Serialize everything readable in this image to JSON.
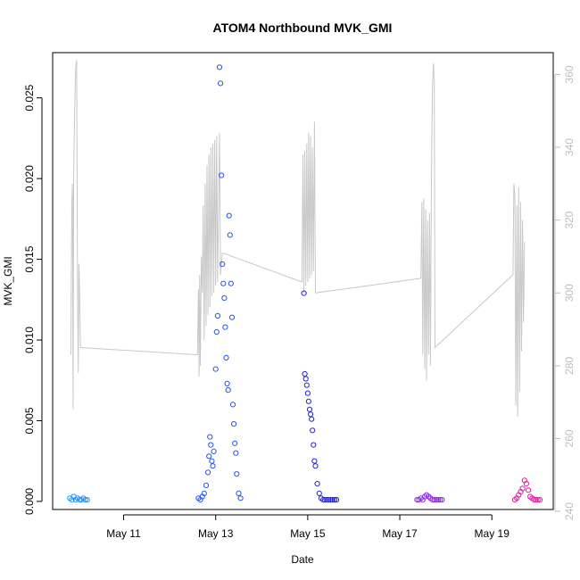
{
  "chart_data": {
    "type": "scatter",
    "title": "ATOM4 Northbound MVK_GMI",
    "xlabel": "Date",
    "ylabel": "MVK_GMI",
    "y2label": "",
    "x_axis": {
      "type": "date",
      "range": [
        "2016-05-09T11:00",
        "2016-05-20T08:00"
      ],
      "ticks": [
        "2016-05-11",
        "2016-05-13",
        "2016-05-15",
        "2016-05-17",
        "2016-05-19"
      ],
      "tick_labels": [
        "May 11",
        "May 13",
        "May 15",
        "May 17",
        "May 19"
      ]
    },
    "y_left": {
      "range": [
        -0.0005,
        0.0278
      ],
      "ticks": [
        0.0,
        0.005,
        0.01,
        0.015,
        0.02,
        0.025
      ],
      "tick_labels": [
        "0.000",
        "0.005",
        "0.010",
        "0.015",
        "0.020",
        "0.025"
      ]
    },
    "y_right": {
      "range": [
        240.5,
        366
      ],
      "ticks": [
        240,
        260,
        280,
        300,
        320,
        340,
        360
      ],
      "tick_labels": [
        "240",
        "260",
        "280",
        "300",
        "320",
        "340",
        "360"
      ],
      "color": "#bdbdbd"
    },
    "grid": false,
    "series": [
      {
        "color": "#1e90ff",
        "points": [
          [
            "2016-05-09T20:00",
            0.0002
          ],
          [
            "2016-05-09T21:00",
            0.0001
          ],
          [
            "2016-05-09T22:00",
            0.0003
          ],
          [
            "2016-05-09T23:00",
            0.0001
          ],
          [
            "2016-05-10T00:00",
            0.0002
          ],
          [
            "2016-05-10T01:00",
            0.0001
          ],
          [
            "2016-05-10T02:00",
            0.0001
          ],
          [
            "2016-05-10T03:00",
            0.0002
          ],
          [
            "2016-05-10T04:00",
            0.0001
          ],
          [
            "2016-05-10T05:00",
            0.0001
          ]
        ]
      },
      {
        "color": "#2a52f0",
        "points": [
          [
            "2016-05-12T15:00",
            0.0002
          ],
          [
            "2016-05-12T16:00",
            0.0001
          ],
          [
            "2016-05-12T17:00",
            0.0003
          ],
          [
            "2016-05-12T18:00",
            0.0005
          ],
          [
            "2016-05-12T19:00",
            0.001
          ],
          [
            "2016-05-12T20:00",
            0.0018
          ],
          [
            "2016-05-12T20:30",
            0.0028
          ],
          [
            "2016-05-12T21:00",
            0.004
          ],
          [
            "2016-05-12T21:30",
            0.0035
          ],
          [
            "2016-05-12T22:00",
            0.0025
          ],
          [
            "2016-05-12T22:30",
            0.0022
          ],
          [
            "2016-05-12T23:00",
            0.0031
          ],
          [
            "2016-05-13T00:00",
            0.0082
          ],
          [
            "2016-05-13T00:30",
            0.0105
          ],
          [
            "2016-05-13T01:00",
            0.0115
          ],
          [
            "2016-05-13T02:00",
            0.0269
          ],
          [
            "2016-05-13T02:30",
            0.0259
          ],
          [
            "2016-05-13T03:00",
            0.0202
          ],
          [
            "2016-05-13T03:30",
            0.0147
          ],
          [
            "2016-05-13T04:00",
            0.0135
          ],
          [
            "2016-05-13T04:30",
            0.0126
          ],
          [
            "2016-05-13T05:00",
            0.0108
          ],
          [
            "2016-05-13T05:30",
            0.0089
          ],
          [
            "2016-05-13T06:00",
            0.0073
          ],
          [
            "2016-05-13T06:30",
            0.0069
          ],
          [
            "2016-05-13T07:00",
            0.0177
          ],
          [
            "2016-05-13T07:30",
            0.0165
          ],
          [
            "2016-05-13T08:00",
            0.0135
          ],
          [
            "2016-05-13T08:30",
            0.0114
          ],
          [
            "2016-05-13T09:00",
            0.006
          ],
          [
            "2016-05-13T09:30",
            0.0048
          ],
          [
            "2016-05-13T10:00",
            0.0036
          ],
          [
            "2016-05-13T10:30",
            0.003
          ],
          [
            "2016-05-13T11:00",
            0.0017
          ],
          [
            "2016-05-13T12:00",
            0.0005
          ],
          [
            "2016-05-13T13:00",
            0.0002
          ]
        ]
      },
      {
        "color": "#2323d8",
        "points": [
          [
            "2016-05-14T22:00",
            0.0129
          ],
          [
            "2016-05-14T22:30",
            0.0079
          ],
          [
            "2016-05-14T23:00",
            0.0076
          ],
          [
            "2016-05-14T23:30",
            0.0072
          ],
          [
            "2016-05-15T00:00",
            0.0067
          ],
          [
            "2016-05-15T00:30",
            0.0062
          ],
          [
            "2016-05-15T01:00",
            0.0057
          ],
          [
            "2016-05-15T01:30",
            0.0054
          ],
          [
            "2016-05-15T02:00",
            0.0051
          ],
          [
            "2016-05-15T02:30",
            0.0044
          ],
          [
            "2016-05-15T03:00",
            0.0035
          ],
          [
            "2016-05-15T03:30",
            0.0025
          ],
          [
            "2016-05-15T04:00",
            0.0022
          ],
          [
            "2016-05-15T05:00",
            0.0011
          ],
          [
            "2016-05-15T06:00",
            0.0005
          ],
          [
            "2016-05-15T07:00",
            0.0002
          ],
          [
            "2016-05-15T08:00",
            0.0001
          ],
          [
            "2016-05-15T09:00",
            0.0001
          ],
          [
            "2016-05-15T10:00",
            0.0001
          ],
          [
            "2016-05-15T11:00",
            0.0001
          ],
          [
            "2016-05-15T12:00",
            0.0001
          ],
          [
            "2016-05-15T13:00",
            0.0001
          ],
          [
            "2016-05-15T14:00",
            0.0001
          ],
          [
            "2016-05-15T15:00",
            0.0001
          ]
        ]
      },
      {
        "color": "#8a2be2",
        "points": [
          [
            "2016-05-17T09:00",
            0.0001
          ],
          [
            "2016-05-17T10:00",
            0.0001
          ],
          [
            "2016-05-17T11:00",
            0.0002
          ],
          [
            "2016-05-17T12:00",
            0.0001
          ],
          [
            "2016-05-17T13:00",
            0.0003
          ],
          [
            "2016-05-17T14:00",
            0.0004
          ],
          [
            "2016-05-17T15:00",
            0.0003
          ],
          [
            "2016-05-17T16:00",
            0.0002
          ],
          [
            "2016-05-17T17:00",
            0.0001
          ],
          [
            "2016-05-17T18:00",
            0.0001
          ],
          [
            "2016-05-17T19:00",
            0.0001
          ],
          [
            "2016-05-17T20:00",
            0.0001
          ],
          [
            "2016-05-17T21:00",
            0.0001
          ],
          [
            "2016-05-17T22:00",
            0.0001
          ]
        ]
      },
      {
        "color": "#e31ca0",
        "points": [
          [
            "2016-05-19T12:00",
            0.0001
          ],
          [
            "2016-05-19T13:00",
            0.0002
          ],
          [
            "2016-05-19T14:00",
            0.0004
          ],
          [
            "2016-05-19T15:00",
            0.0006
          ],
          [
            "2016-05-19T16:00",
            0.0008
          ],
          [
            "2016-05-19T17:00",
            0.0013
          ],
          [
            "2016-05-19T18:00",
            0.0011
          ],
          [
            "2016-05-19T19:00",
            0.0007
          ],
          [
            "2016-05-19T20:00",
            0.0003
          ],
          [
            "2016-05-19T21:00",
            0.0002
          ],
          [
            "2016-05-19T22:00",
            0.0001
          ],
          [
            "2016-05-19T23:00",
            0.0001
          ],
          [
            "2016-05-20T00:00",
            0.0001
          ],
          [
            "2016-05-20T01:00",
            0.0001
          ]
        ]
      }
    ],
    "secondary_line": {
      "axis": "right",
      "color": "#c8c8c8",
      "points": [
        [
          "2016-05-09T20:30",
          283
        ],
        [
          "2016-05-09T21:00",
          325
        ],
        [
          "2016-05-09T21:20",
          330
        ],
        [
          "2016-05-09T21:40",
          268
        ],
        [
          "2016-05-09T22:00",
          333
        ],
        [
          "2016-05-09T22:30",
          350
        ],
        [
          "2016-05-09T23:00",
          362
        ],
        [
          "2016-05-09T23:30",
          364
        ],
        [
          "2016-05-10T00:00",
          300
        ],
        [
          "2016-05-10T00:20",
          278
        ],
        [
          "2016-05-10T00:40",
          308
        ],
        [
          "2016-05-10T01:00",
          302
        ],
        [
          "2016-05-10T01:30",
          285
        ],
        [
          "2016-05-12T14:30",
          283
        ],
        [
          "2016-05-12T15:00",
          301
        ],
        [
          "2016-05-12T15:20",
          277
        ],
        [
          "2016-05-12T15:40",
          305
        ],
        [
          "2016-05-12T16:00",
          280
        ],
        [
          "2016-05-12T16:30",
          310
        ],
        [
          "2016-05-12T17:00",
          300
        ],
        [
          "2016-05-12T17:30",
          324
        ],
        [
          "2016-05-12T18:00",
          287
        ],
        [
          "2016-05-12T18:30",
          330
        ],
        [
          "2016-05-12T19:00",
          291
        ],
        [
          "2016-05-12T19:30",
          335
        ],
        [
          "2016-05-12T20:00",
          294
        ],
        [
          "2016-05-12T20:30",
          338
        ],
        [
          "2016-05-12T21:00",
          296
        ],
        [
          "2016-05-12T21:30",
          340
        ],
        [
          "2016-05-12T22:00",
          299
        ],
        [
          "2016-05-12T22:30",
          341
        ],
        [
          "2016-05-12T23:00",
          300
        ],
        [
          "2016-05-12T23:30",
          342
        ],
        [
          "2016-05-13T00:00",
          302
        ],
        [
          "2016-05-13T00:30",
          343
        ],
        [
          "2016-05-13T01:00",
          303
        ],
        [
          "2016-05-13T02:00",
          344
        ],
        [
          "2016-05-13T02:30",
          305
        ],
        [
          "2016-05-13T03:30",
          311
        ],
        [
          "2016-05-14T21:00",
          303
        ],
        [
          "2016-05-14T21:30",
          338
        ],
        [
          "2016-05-14T22:00",
          300
        ],
        [
          "2016-05-14T22:30",
          339
        ],
        [
          "2016-05-14T23:00",
          302
        ],
        [
          "2016-05-14T23:30",
          341
        ],
        [
          "2016-05-15T00:00",
          303
        ],
        [
          "2016-05-15T00:30",
          344
        ],
        [
          "2016-05-15T01:00",
          304
        ],
        [
          "2016-05-15T01:30",
          343
        ],
        [
          "2016-05-15T02:00",
          305
        ],
        [
          "2016-05-15T02:30",
          340
        ],
        [
          "2016-05-15T03:00",
          306
        ],
        [
          "2016-05-15T03:30",
          347
        ],
        [
          "2016-05-15T04:00",
          300
        ],
        [
          "2016-05-17T11:00",
          304
        ],
        [
          "2016-05-17T11:30",
          325
        ],
        [
          "2016-05-17T12:00",
          283
        ],
        [
          "2016-05-17T12:30",
          326
        ],
        [
          "2016-05-17T13:00",
          279
        ],
        [
          "2016-05-17T13:30",
          323
        ],
        [
          "2016-05-17T14:00",
          276
        ],
        [
          "2016-05-17T14:30",
          320
        ],
        [
          "2016-05-17T15:00",
          283
        ],
        [
          "2016-05-17T15:30",
          322
        ],
        [
          "2016-05-17T16:00",
          280
        ],
        [
          "2016-05-17T16:30",
          331
        ],
        [
          "2016-05-17T17:00",
          356
        ],
        [
          "2016-05-17T17:30",
          363
        ],
        [
          "2016-05-17T18:00",
          358
        ],
        [
          "2016-05-17T18:20",
          285
        ],
        [
          "2016-05-19T11:00",
          305
        ],
        [
          "2016-05-19T11:30",
          330
        ],
        [
          "2016-05-19T12:00",
          327
        ],
        [
          "2016-05-19T12:30",
          269
        ],
        [
          "2016-05-19T13:00",
          324
        ],
        [
          "2016-05-19T13:30",
          266
        ],
        [
          "2016-05-19T14:00",
          329
        ],
        [
          "2016-05-19T14:30",
          273
        ],
        [
          "2016-05-19T15:00",
          325
        ],
        [
          "2016-05-19T15:30",
          284
        ],
        [
          "2016-05-19T16:00",
          320
        ],
        [
          "2016-05-19T16:30",
          292
        ],
        [
          "2016-05-19T17:00",
          314
        ]
      ]
    }
  }
}
